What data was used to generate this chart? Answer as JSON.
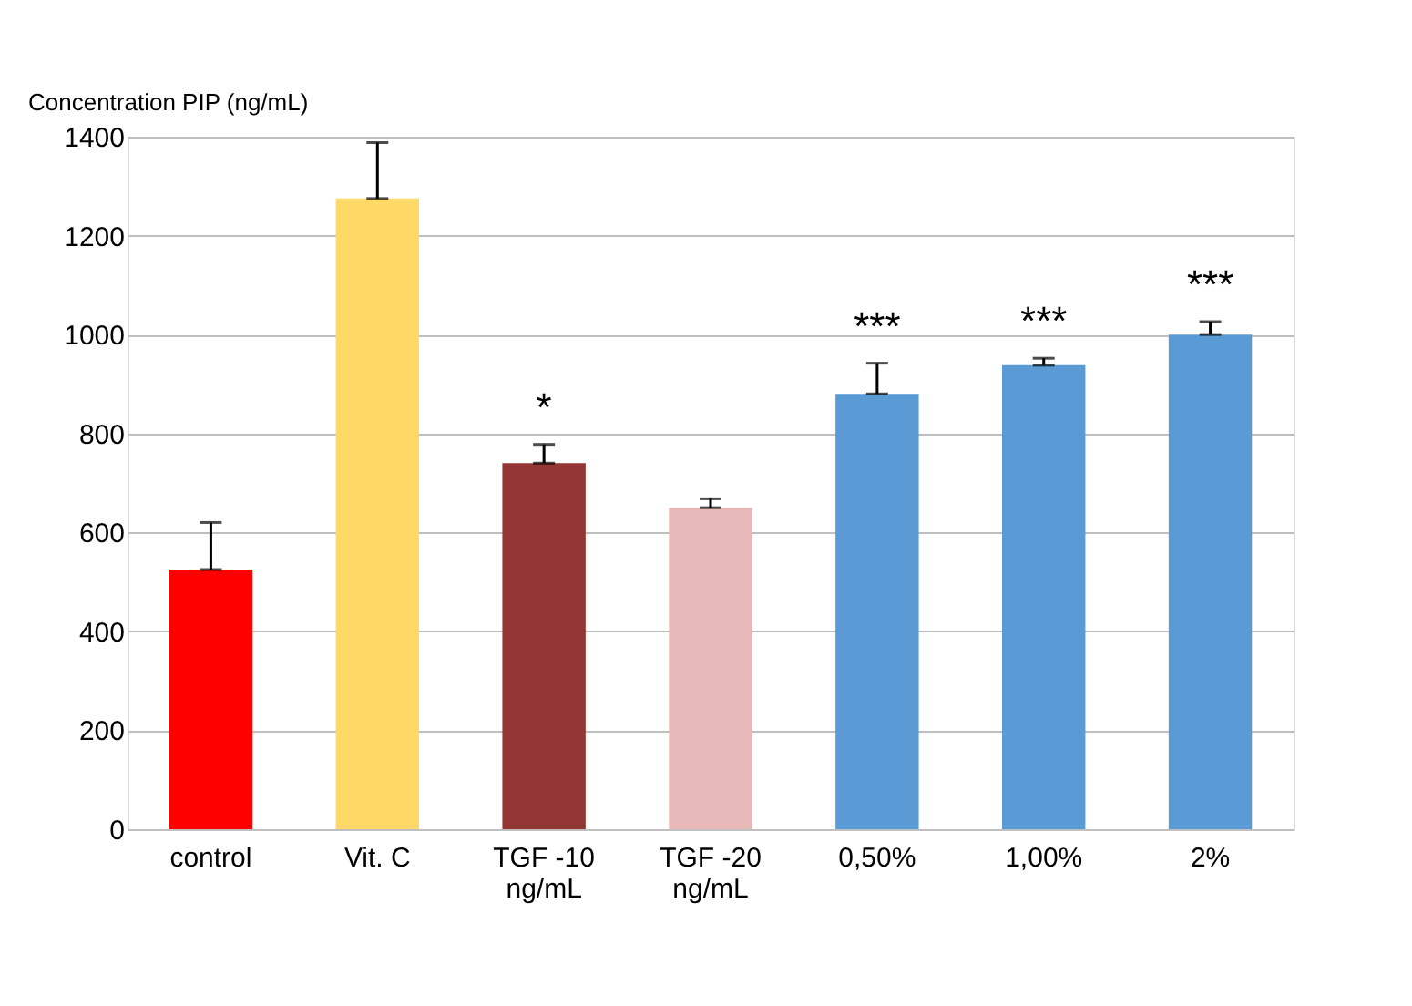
{
  "chart_data": {
    "type": "bar",
    "ylabel": "Concentration PIP (ng/mL)",
    "categories": [
      "control",
      "Vit. C",
      "TGF -10\nng/mL",
      "TGF -20\nng/mL",
      "0,50%",
      "1,00%",
      "2%"
    ],
    "values": [
      525,
      1275,
      740,
      650,
      880,
      938,
      1000
    ],
    "colors": [
      "#ff0000",
      "#ffd966",
      "#943634",
      "#e6b8b7",
      "#5b9bd5",
      "#5b9bd5",
      "#5b9bd5"
    ],
    "errors": [
      [
        525,
        620
      ],
      [
        1275,
        1388
      ],
      [
        740,
        778
      ],
      [
        650,
        668
      ],
      [
        880,
        942
      ],
      [
        938,
        952
      ],
      [
        1000,
        1026
      ]
    ],
    "ylim": [
      0,
      1400
    ],
    "yticks": [
      0,
      200,
      400,
      600,
      800,
      1000,
      1200,
      1400
    ],
    "grid": "y",
    "annotations": [
      {
        "text": "*",
        "x": "TGF -10\nng/mL",
        "y": 778
      },
      {
        "text": "***",
        "x": "0,50%",
        "y": 942
      },
      {
        "text": "***",
        "x": "1,00%",
        "y": 952
      },
      {
        "text": "***",
        "x": "2%",
        "y": 1026
      }
    ]
  }
}
